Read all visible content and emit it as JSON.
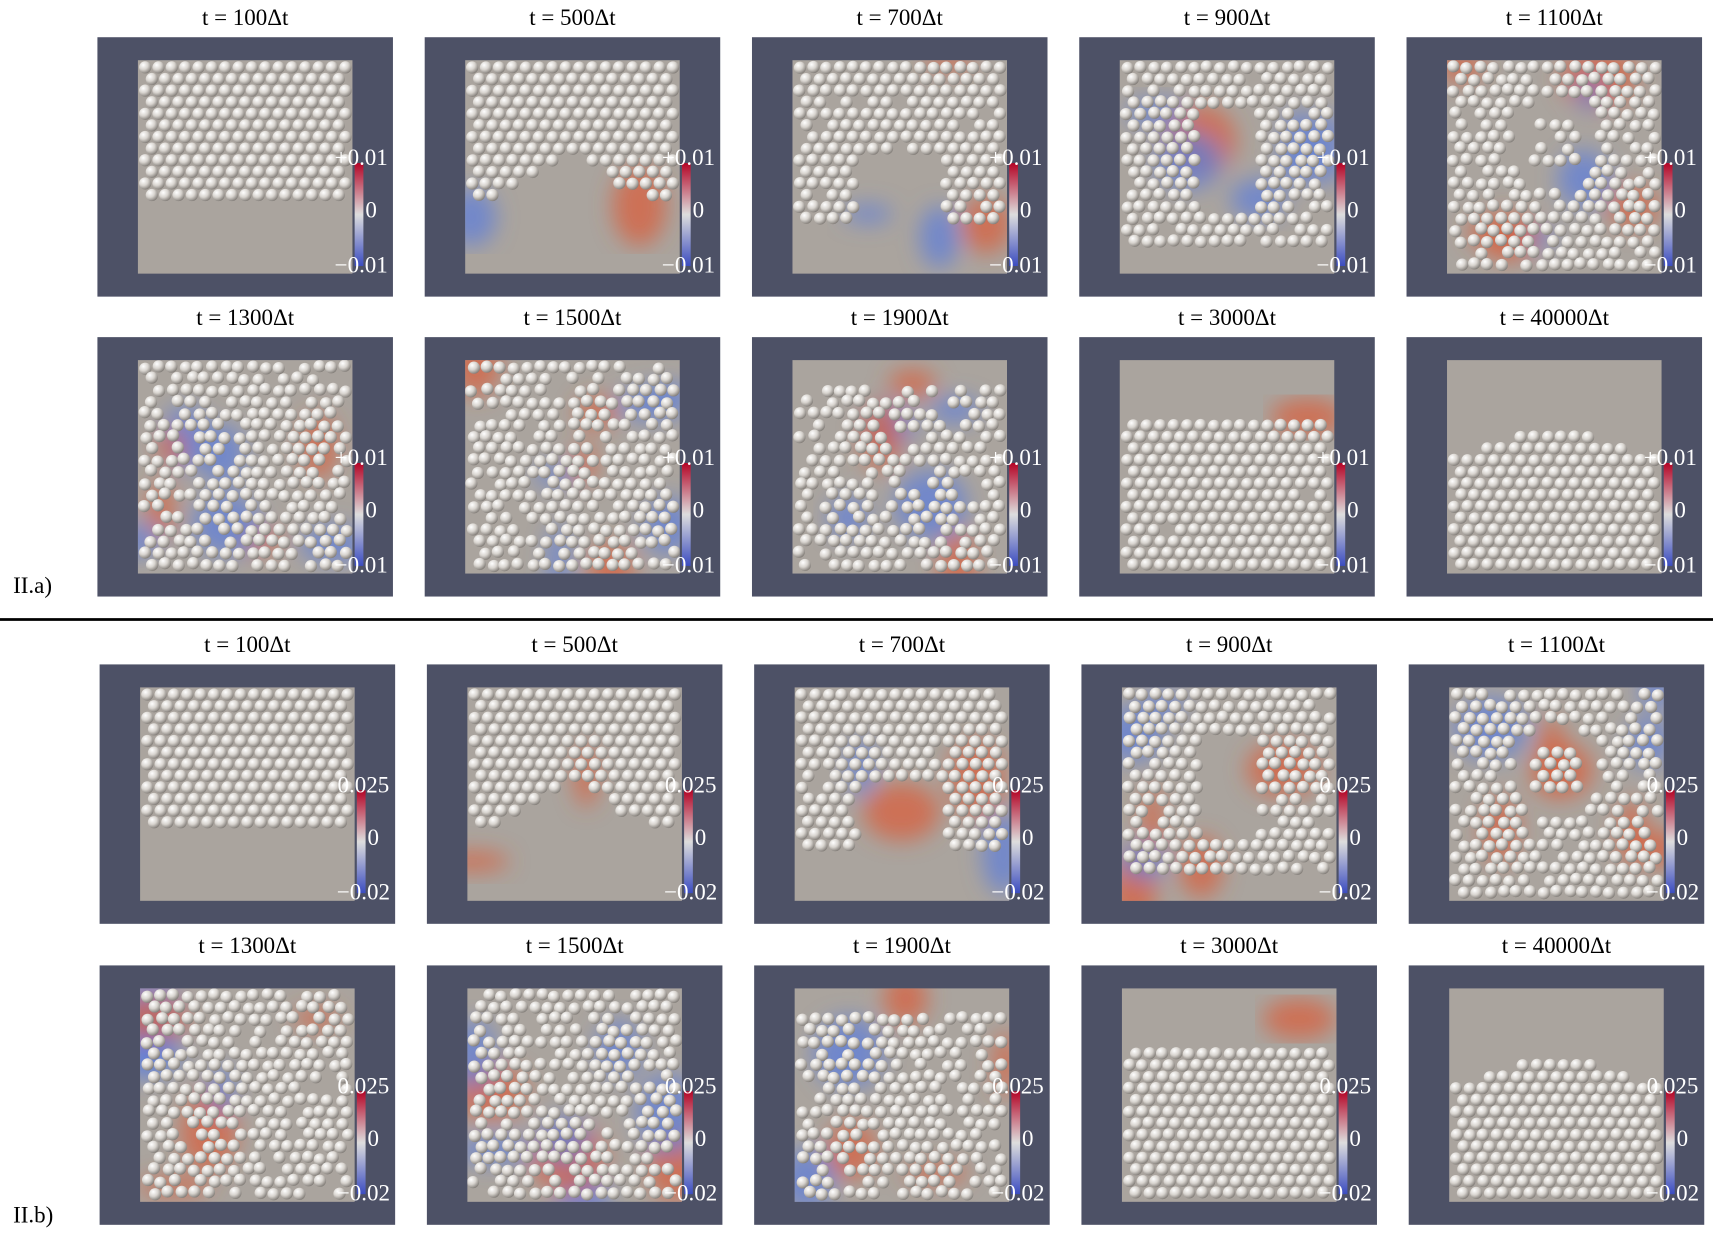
{
  "sections": [
    {
      "label": "II.a)",
      "colorbar": {
        "max": "+0.01",
        "mid": "0",
        "min": "−0.01"
      },
      "panels": [
        "t = 100Δt",
        "t = 500Δt",
        "t = 700Δt",
        "t = 900Δt",
        "t = 1100Δt",
        "t = 1300Δt",
        "t = 1500Δt",
        "t = 1900Δt",
        "t = 3000Δt",
        "t = 40000Δt"
      ]
    },
    {
      "label": "II.b)",
      "colorbar": {
        "max": "0.025",
        "mid": "0",
        "min": "−0.02"
      },
      "panels": [
        "t = 100Δt",
        "t = 500Δt",
        "t = 700Δt",
        "t = 900Δt",
        "t = 1100Δt",
        "t = 1300Δt",
        "t = 1500Δt",
        "t = 1900Δt",
        "t = 3000Δt",
        "t = 40000Δt"
      ]
    }
  ]
}
